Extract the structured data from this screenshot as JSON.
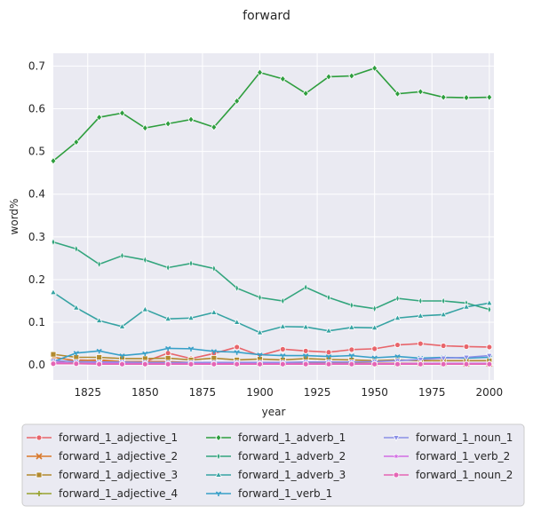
{
  "chart_data": {
    "type": "line",
    "title": "forward",
    "xlabel": "year",
    "ylabel": "word%",
    "xlim": [
      1810,
      2002
    ],
    "ylim": [
      -0.035,
      0.73
    ],
    "xticks": [
      1825,
      1850,
      1875,
      1900,
      1925,
      1950,
      1975,
      2000
    ],
    "yticks": [
      0.0,
      0.1,
      0.2,
      0.3,
      0.4,
      0.5,
      0.6,
      0.7
    ],
    "ytick_labels": [
      "0.0",
      "0.1",
      "0.2",
      "0.3",
      "0.4",
      "0.5",
      "0.6",
      "0.7"
    ],
    "grid": true,
    "legend_position": "bottom",
    "x": [
      1810,
      1820,
      1830,
      1840,
      1850,
      1860,
      1870,
      1880,
      1890,
      1900,
      1910,
      1920,
      1930,
      1940,
      1950,
      1960,
      1970,
      1980,
      1990,
      2000
    ],
    "series": [
      {
        "name": "forward_1_adjective_1",
        "color": "#e8656b",
        "marker": "circle",
        "values": [
          0.005,
          0.012,
          0.01,
          0.008,
          0.008,
          0.028,
          0.015,
          0.027,
          0.042,
          0.022,
          0.037,
          0.033,
          0.03,
          0.036,
          0.038,
          0.047,
          0.05,
          0.045,
          0.043,
          0.042
        ]
      },
      {
        "name": "forward_1_adjective_2",
        "color": "#d9792b",
        "marker": "x",
        "values": [
          0.018,
          0.01,
          0.012,
          0.008,
          0.008,
          0.008,
          0.006,
          0.006,
          0.005,
          0.005,
          0.005,
          0.006,
          0.005,
          0.005,
          0.004,
          0.004,
          0.004,
          0.004,
          0.003,
          0.003
        ]
      },
      {
        "name": "forward_1_adjective_3",
        "color": "#b28a2e",
        "marker": "square",
        "values": [
          0.025,
          0.018,
          0.018,
          0.015,
          0.015,
          0.016,
          0.012,
          0.016,
          0.012,
          0.014,
          0.012,
          0.015,
          0.013,
          0.012,
          0.01,
          0.012,
          0.01,
          0.01,
          0.01,
          0.01
        ]
      },
      {
        "name": "forward_1_adjective_4",
        "color": "#97a22e",
        "marker": "plus",
        "values": [
          0.005,
          0.005,
          0.004,
          0.004,
          0.004,
          0.004,
          0.004,
          0.003,
          0.003,
          0.003,
          0.003,
          0.003,
          0.003,
          0.003,
          0.003,
          0.002,
          0.002,
          0.002,
          0.002,
          0.002
        ]
      },
      {
        "name": "forward_1_adverb_1",
        "color": "#2e9e3e",
        "marker": "diamond",
        "values": [
          0.478,
          0.522,
          0.58,
          0.59,
          0.555,
          0.565,
          0.575,
          0.557,
          0.618,
          0.685,
          0.67,
          0.636,
          0.675,
          0.677,
          0.695,
          0.635,
          0.64,
          0.627,
          0.626,
          0.627
        ]
      },
      {
        "name": "forward_1_adverb_2",
        "color": "#33a57d",
        "marker": "thin-diamond",
        "values": [
          0.288,
          0.272,
          0.236,
          0.256,
          0.246,
          0.228,
          0.238,
          0.226,
          0.18,
          0.158,
          0.15,
          0.182,
          0.158,
          0.14,
          0.132,
          0.156,
          0.15,
          0.15,
          0.145,
          0.13
        ]
      },
      {
        "name": "forward_1_adverb_3",
        "color": "#36a3a3",
        "marker": "triangle-up",
        "values": [
          0.17,
          0.134,
          0.104,
          0.09,
          0.13,
          0.108,
          0.11,
          0.123,
          0.1,
          0.076,
          0.09,
          0.089,
          0.08,
          0.088,
          0.087,
          0.11,
          0.115,
          0.118,
          0.136,
          0.145
        ]
      },
      {
        "name": "forward_1_verb_1",
        "color": "#38a0c8",
        "marker": "tri",
        "values": [
          0.008,
          0.028,
          0.033,
          0.022,
          0.027,
          0.039,
          0.038,
          0.032,
          0.03,
          0.024,
          0.022,
          0.022,
          0.02,
          0.022,
          0.017,
          0.02,
          0.016,
          0.018,
          0.016,
          0.018
        ]
      },
      {
        "name": "forward_1_noun_1",
        "color": "#8a8fe6",
        "marker": "triangle-down",
        "values": [
          0.01,
          0.008,
          0.007,
          0.007,
          0.006,
          0.006,
          0.006,
          0.006,
          0.006,
          0.006,
          0.006,
          0.007,
          0.007,
          0.007,
          0.008,
          0.01,
          0.013,
          0.016,
          0.018,
          0.022
        ]
      },
      {
        "name": "forward_1_verb_2",
        "color": "#d26ce3",
        "marker": "star",
        "values": [
          0.006,
          0.004,
          0.004,
          0.004,
          0.003,
          0.003,
          0.003,
          0.003,
          0.003,
          0.003,
          0.003,
          0.003,
          0.003,
          0.003,
          0.003,
          0.003,
          0.004,
          0.004,
          0.004,
          0.004
        ]
      },
      {
        "name": "forward_1_noun_2",
        "color": "#e465b5",
        "marker": "circle",
        "values": [
          0.003,
          0.003,
          0.002,
          0.002,
          0.002,
          0.002,
          0.002,
          0.002,
          0.002,
          0.002,
          0.002,
          0.002,
          0.002,
          0.002,
          0.002,
          0.002,
          0.002,
          0.002,
          0.002,
          0.002
        ]
      }
    ]
  }
}
